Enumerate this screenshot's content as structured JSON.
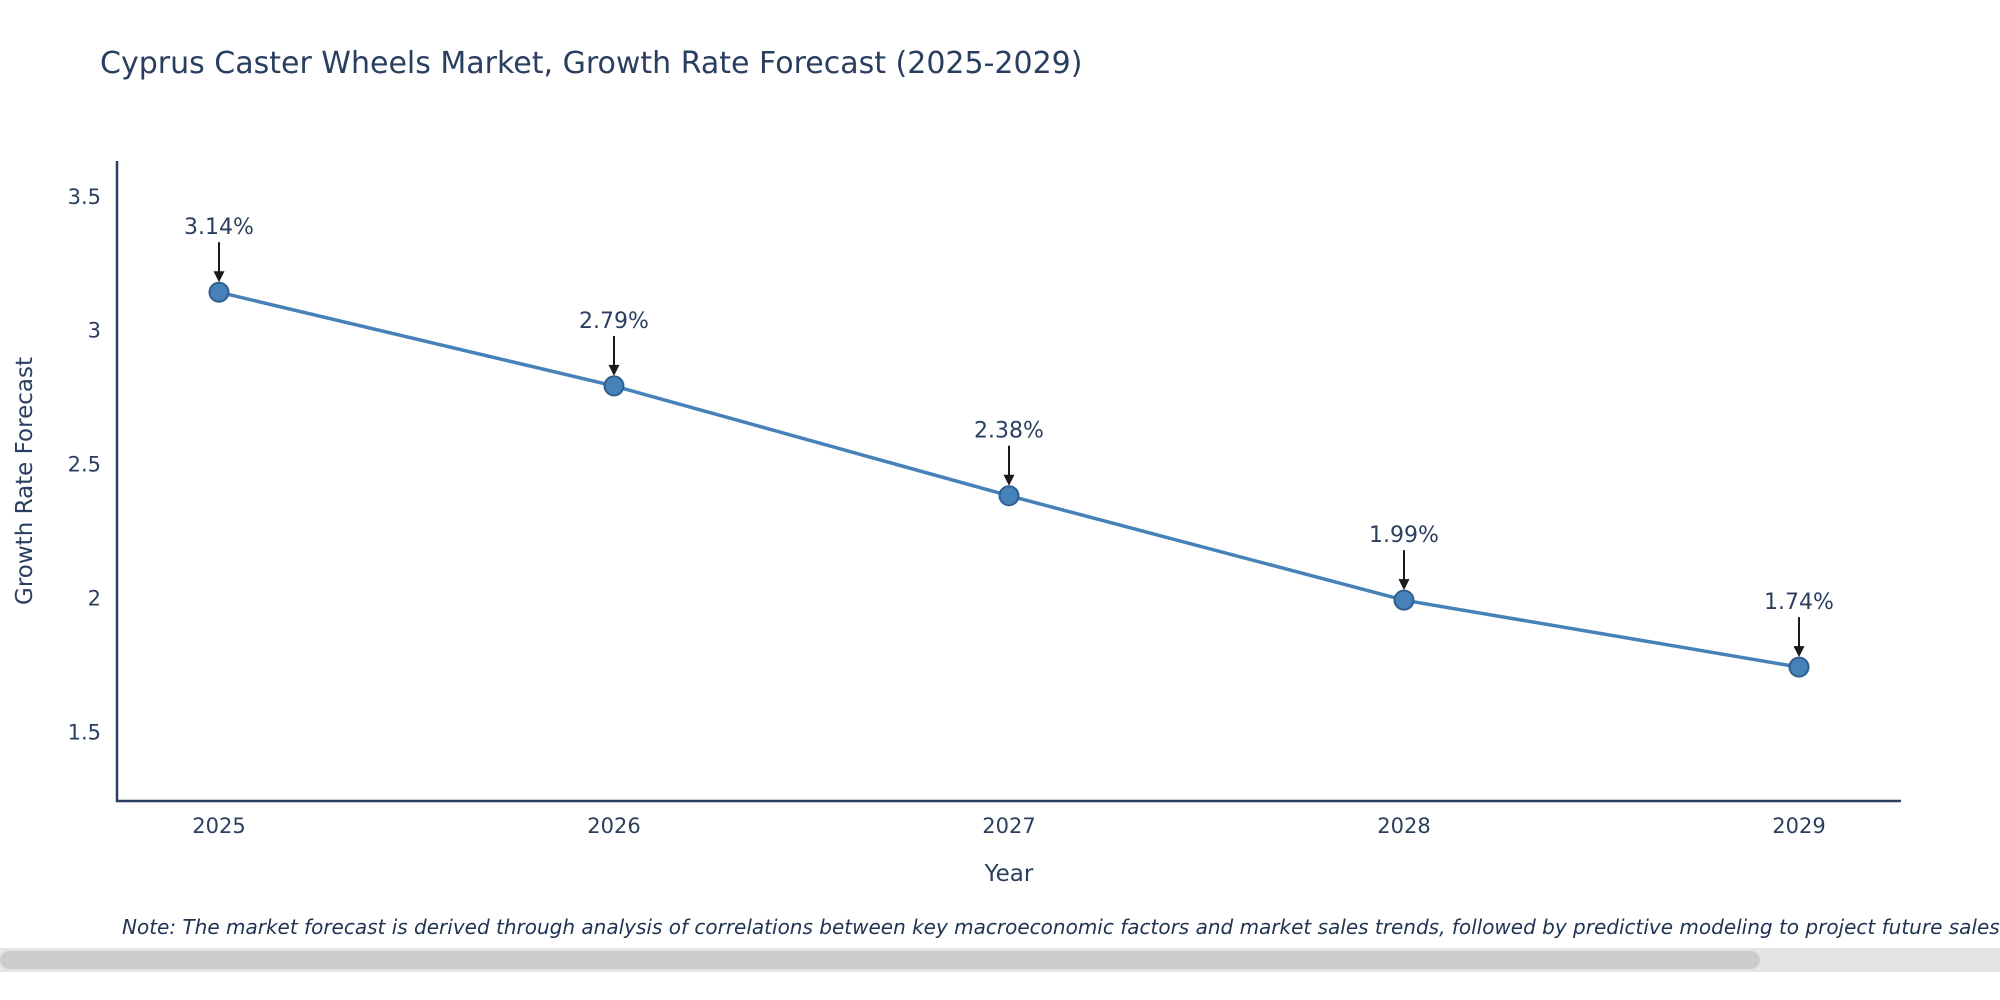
{
  "page": {
    "note": "Note: The market forecast is derived through analysis of correlations between key macroeconomic factors and market sales trends, followed by predictive modeling to project future sales"
  },
  "chart_data": {
    "type": "line",
    "title": "Cyprus Caster Wheels Market, Growth Rate Forecast (2025-2029)",
    "xlabel": "Year",
    "ylabel": "Growth Rate Forecast",
    "categories": [
      "2025",
      "2026",
      "2027",
      "2028",
      "2029"
    ],
    "values": [
      3.14,
      2.79,
      2.38,
      1.99,
      1.74
    ],
    "point_labels": [
      "3.14%",
      "2.79%",
      "2.38%",
      "1.99%",
      "1.74%"
    ],
    "y_ticks": [
      "3.5",
      "3",
      "2.5",
      "2",
      "1.5"
    ],
    "y_tick_values": [
      3.5,
      3.0,
      2.5,
      2.0,
      1.5
    ],
    "ylim": [
      1.24,
      3.63
    ],
    "grid": false,
    "legend": "none",
    "line_color": "#4781b9",
    "marker_edge_color": "#2f5f8f",
    "arrow_color": "#1a1a1a",
    "axis_text_color": "#2a3f5f",
    "axis_line_color": "#2a3f5f"
  }
}
